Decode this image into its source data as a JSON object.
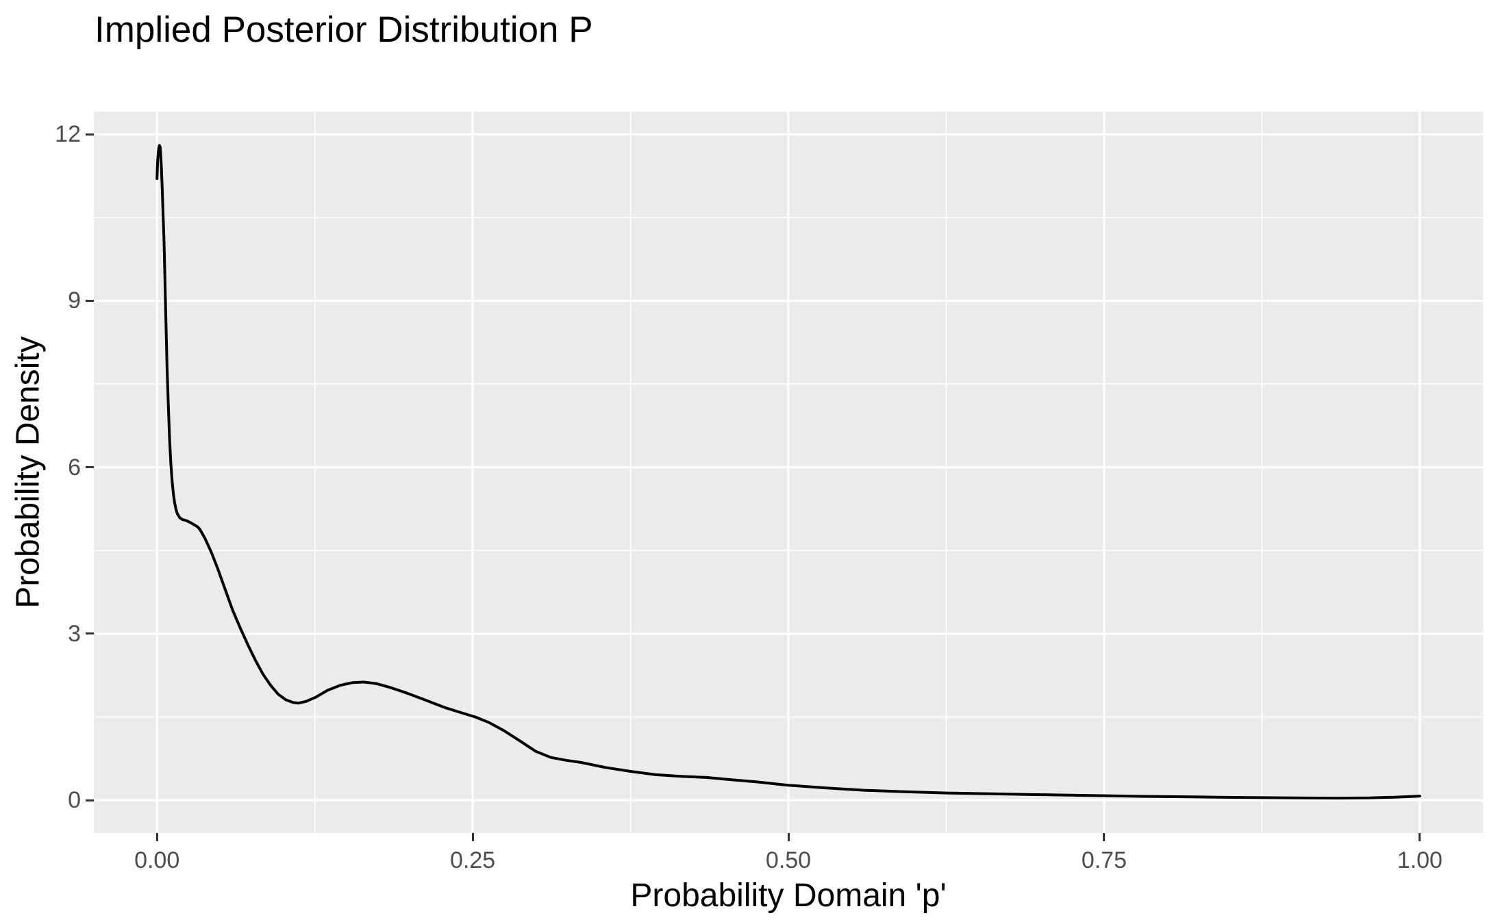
{
  "figure": {
    "title": "Implied Posterior Distribution P",
    "background_color": "#FFFFFF"
  },
  "chart_data": {
    "type": "line",
    "title": "Implied Posterior Distribution P",
    "xlabel": "Probability Domain 'p'",
    "ylabel": "Probability Density",
    "legend": false,
    "grid": true,
    "style": "ggplot-gray-panel-white-gridlines",
    "panel_background_color": "#EBEBEB",
    "gridline_color": "#FFFFFF",
    "curve_color": "#000000",
    "tick_label_color": "#4D4D4D",
    "tick_mark_color": "#333333",
    "xlim": [
      -0.05,
      1.05
    ],
    "ylim": [
      -0.59,
      12.41
    ],
    "x_ticks": [
      0.0,
      0.25,
      0.5,
      0.75,
      1.0
    ],
    "x_tick_labels": [
      "0.00",
      "0.25",
      "0.50",
      "0.75",
      "1.00"
    ],
    "x_minor_ticks": [
      0.125,
      0.375,
      0.625,
      0.875
    ],
    "y_ticks": [
      0,
      3,
      6,
      9,
      12
    ],
    "y_tick_labels": [
      "0",
      "3",
      "6",
      "9",
      "12"
    ],
    "y_minor_ticks": [
      1.5,
      4.5,
      7.5,
      10.5
    ],
    "series": [
      {
        "name": "posterior-density-curve",
        "x": [
          0.0,
          0.0005,
          0.001,
          0.0015,
          0.002,
          0.0025,
          0.003,
          0.0035,
          0.004,
          0.0045,
          0.005,
          0.0055,
          0.006,
          0.007,
          0.008,
          0.009,
          0.01,
          0.011,
          0.012,
          0.013,
          0.014,
          0.015,
          0.016,
          0.018,
          0.02,
          0.023,
          0.026,
          0.029,
          0.032,
          0.034,
          0.038,
          0.043,
          0.048,
          0.054,
          0.06,
          0.066,
          0.072,
          0.078,
          0.084,
          0.09,
          0.096,
          0.102,
          0.108,
          0.112,
          0.118,
          0.126,
          0.135,
          0.145,
          0.155,
          0.164,
          0.174,
          0.185,
          0.198,
          0.212,
          0.228,
          0.242,
          0.252,
          0.263,
          0.275,
          0.288,
          0.3,
          0.312,
          0.324,
          0.336,
          0.355,
          0.375,
          0.395,
          0.415,
          0.435,
          0.455,
          0.475,
          0.5,
          0.53,
          0.56,
          0.59,
          0.625,
          0.66,
          0.7,
          0.74,
          0.78,
          0.82,
          0.86,
          0.9,
          0.935,
          0.96,
          0.98,
          0.993,
          1.0
        ],
        "y": [
          11.2,
          11.5,
          11.66,
          11.76,
          11.8,
          11.77,
          11.62,
          11.4,
          11.1,
          10.78,
          10.45,
          10.15,
          9.7,
          8.7,
          7.8,
          7.1,
          6.5,
          6.05,
          5.75,
          5.52,
          5.36,
          5.25,
          5.17,
          5.09,
          5.06,
          5.04,
          5.01,
          4.97,
          4.93,
          4.88,
          4.72,
          4.47,
          4.18,
          3.8,
          3.42,
          3.1,
          2.8,
          2.52,
          2.27,
          2.07,
          1.91,
          1.81,
          1.76,
          1.75,
          1.78,
          1.86,
          1.98,
          2.07,
          2.12,
          2.13,
          2.1,
          2.03,
          1.93,
          1.81,
          1.67,
          1.57,
          1.5,
          1.4,
          1.25,
          1.06,
          0.88,
          0.77,
          0.72,
          0.68,
          0.59,
          0.52,
          0.46,
          0.43,
          0.41,
          0.37,
          0.33,
          0.27,
          0.22,
          0.18,
          0.155,
          0.13,
          0.115,
          0.1,
          0.085,
          0.07,
          0.06,
          0.05,
          0.042,
          0.038,
          0.042,
          0.055,
          0.068,
          0.075
        ]
      }
    ],
    "annotations": {
      "peak": {
        "x": 0.002,
        "y": 11.8
      },
      "shoulder": {
        "x": 0.025,
        "y": 5.0
      },
      "local_min": {
        "x": 0.11,
        "y": 1.75
      },
      "local_max": {
        "x": 0.163,
        "y": 2.12
      }
    }
  }
}
